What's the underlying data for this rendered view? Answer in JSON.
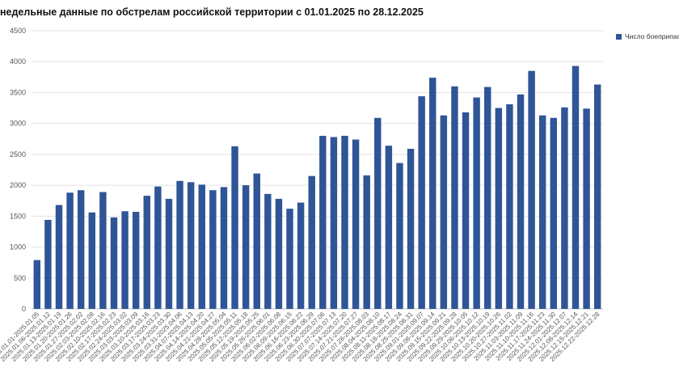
{
  "chart_data": {
    "type": "bar",
    "title": "недельные данные по обстрелам российской территории с 01.01.2025 по 28.12.2025",
    "xlabel": "",
    "ylabel": "",
    "ylim": [
      0,
      4500
    ],
    "yticks": [
      0,
      500,
      1000,
      1500,
      2000,
      2500,
      3000,
      3500,
      4000,
      4500
    ],
    "grid": true,
    "legend_position": "top-right",
    "categories": [
      "2025.01.01-2025.01.05",
      "2025.01.06-2025.01.12",
      "2025.01.13-2025.01.19",
      "2025.01.20-2025.01.26",
      "2025.01.27-2025.02.02",
      "2025.02.03-2025.02.09",
      "2025.02.10-2025.02.16",
      "2025.02.17-2025.02.23",
      "2025.02.24-2025.03.02",
      "2025.03.03-2025.03.09",
      "2025.03.10-2025.03.16",
      "2025.03.17-2025.03.23",
      "2025.03.24-2025.03.30",
      "2025.03.31-2025.04.06",
      "2025.04.07-2025.04.13",
      "2025.04.14-2025.04.20",
      "2025.04.21-2025.04.27",
      "2025.04.28-2025.05.04",
      "2025.05.05-2025.05.11",
      "2025.05.12-2025.05.18",
      "2025.05.19-2025.05.25",
      "2025.05.26-2025.06.01",
      "2025.06.02-2025.06.08",
      "2025.06.09-2025.06.15",
      "2025.06.16-2025.06.22",
      "2025.06.23-2025.06.29",
      "2025.06.30-2025.07.06",
      "2025.07.07-2025.07.13",
      "2025.07.14-2025.07.20",
      "2025.07.21-2025.07.27",
      "2025.07.28-2025.08.03",
      "2025.08.04-2025.08.10",
      "2025.08.11-2025.08.17",
      "2025.08.18-2025.08.24",
      "2025.08.25-2025.08.31",
      "2025.09.01-2025.09.07",
      "2025.09.08-2025.09.14",
      "2025.09.15-2025.09.21",
      "2025.09.22-2025.09.28",
      "2025.09.29-2025.10.05",
      "2025.10.06-2025.10.12",
      "2025.10.13-2025.10.19",
      "2025.10.20-2025.10.26",
      "2025.10.27-2025.11.02",
      "2025.11.03-2025.11.09",
      "2025.11.10-2025.11.16",
      "2025.11.17-2025.11.23",
      "2025.11.24-2025.11.30",
      "2025.12.01-2025.12.07",
      "2025.12.08-2025.12.14",
      "2025.12.15-2025.12.21",
      "2025.12.22-2025.12.28"
    ],
    "series": [
      {
        "name": "Число боеприпасов",
        "color": "#2f5597",
        "values": [
          790,
          1440,
          1680,
          1880,
          1920,
          1560,
          1890,
          1480,
          1580,
          1570,
          1830,
          1980,
          1780,
          2070,
          2050,
          2010,
          1920,
          1970,
          2630,
          2000,
          2190,
          1860,
          1780,
          1620,
          1720,
          2150,
          2800,
          2780,
          2800,
          2740,
          2160,
          3090,
          2640,
          2360,
          2590,
          3440,
          3740,
          3130,
          3600,
          3180,
          3420,
          3590,
          3250,
          3310,
          3470,
          3850,
          3130,
          3090,
          3260,
          3930,
          3240,
          3630
        ]
      }
    ]
  }
}
